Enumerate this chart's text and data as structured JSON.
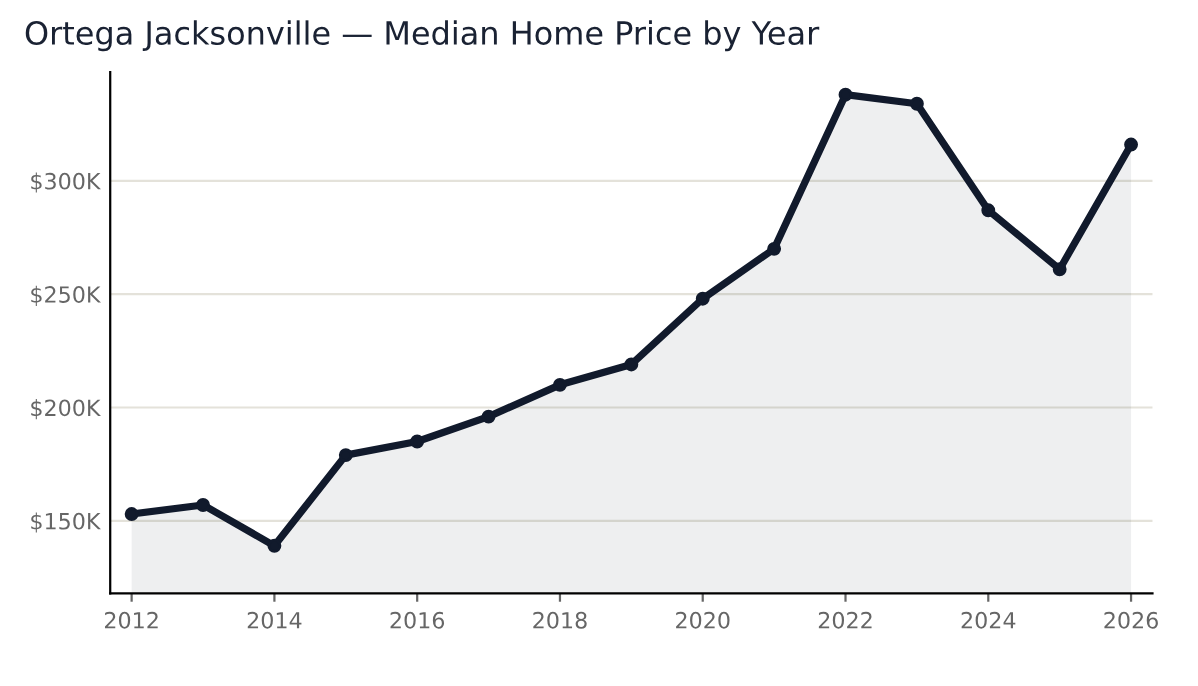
{
  "chart_data": {
    "type": "area",
    "title": "Ortega Jacksonville — Median Home Price by Year",
    "x": [
      2012,
      2013,
      2014,
      2015,
      2016,
      2017,
      2018,
      2019,
      2020,
      2021,
      2022,
      2023,
      2024,
      2025,
      2026
    ],
    "series": [
      {
        "color": "#111a2c",
        "values": [
          153,
          157,
          139,
          179,
          185,
          196,
          210,
          219,
          248,
          270,
          338,
          334,
          287,
          261,
          316
        ]
      }
    ],
    "xlim": [
      2011.7,
      2026.3
    ],
    "xticks": [
      2012,
      2014,
      2016,
      2018,
      2020,
      2022,
      2024,
      2026
    ],
    "ylim": [
      118,
      348
    ],
    "yticks": [
      {
        "value": 150,
        "label": "$150K"
      },
      {
        "value": 200,
        "label": "$200K"
      },
      {
        "value": 250,
        "label": "$250K"
      },
      {
        "value": 300,
        "label": "$300K"
      }
    ],
    "grid": "y",
    "marker": "circle",
    "line_style": "solid",
    "legend": false
  }
}
